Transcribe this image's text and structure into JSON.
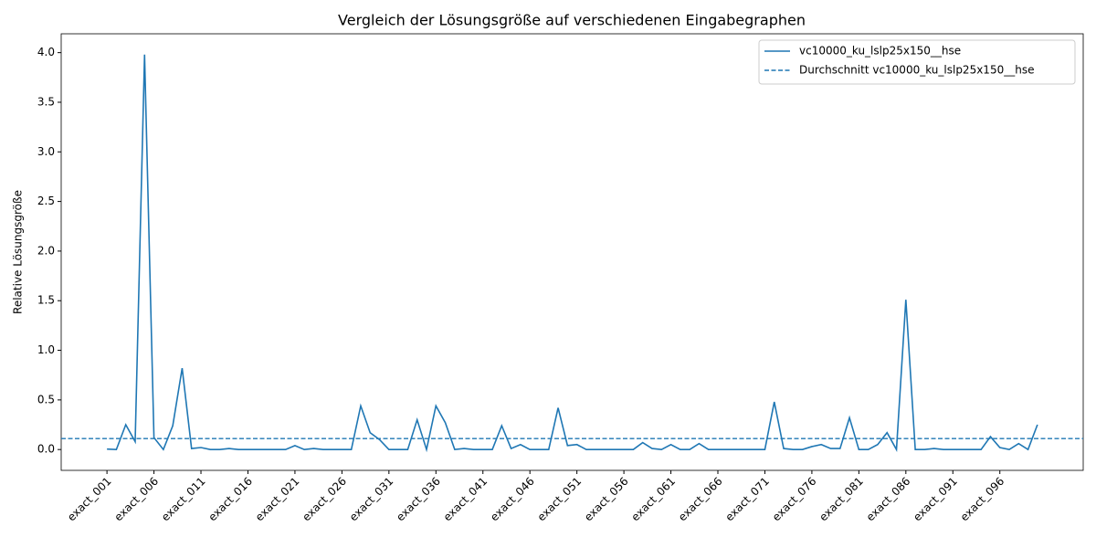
{
  "chart_data": {
    "type": "line",
    "title": "Vergleich der Lösungsgröße auf verschiedenen Eingabegraphen",
    "ylabel": "Relative Lösungsgröße",
    "categories": [
      "exact_001",
      null,
      null,
      null,
      null,
      "exact_006",
      null,
      null,
      null,
      null,
      "exact_011",
      null,
      null,
      null,
      null,
      "exact_016",
      null,
      null,
      null,
      null,
      "exact_021",
      null,
      null,
      null,
      null,
      "exact_026",
      null,
      null,
      null,
      null,
      "exact_031",
      null,
      null,
      null,
      null,
      "exact_036",
      null,
      null,
      null,
      null,
      "exact_041",
      null,
      null,
      null,
      null,
      "exact_046",
      null,
      null,
      null,
      null,
      "exact_051",
      null,
      null,
      null,
      null,
      "exact_056",
      null,
      null,
      null,
      null,
      "exact_061",
      null,
      null,
      null,
      null,
      "exact_066",
      null,
      null,
      null,
      null,
      "exact_071",
      null,
      null,
      null,
      null,
      "exact_076",
      null,
      null,
      null,
      null,
      "exact_081",
      null,
      null,
      null,
      null,
      "exact_086",
      null,
      null,
      null,
      null,
      "exact_091",
      null,
      null,
      null,
      null,
      "exact_096",
      null,
      null,
      null,
      null
    ],
    "series": [
      {
        "name": "vc10000_ku_lslp25x150__hse",
        "color": "#1f77b4",
        "values": [
          0.005,
          0.0,
          0.25,
          0.08,
          3.98,
          0.12,
          0.0,
          0.24,
          0.82,
          0.01,
          0.02,
          0.0,
          0.0,
          0.01,
          0.0,
          0.0,
          0.0,
          0.0,
          0.0,
          0.0,
          0.04,
          0.0,
          0.01,
          0.0,
          0.0,
          0.0,
          0.0,
          0.44,
          0.17,
          0.1,
          0.0,
          0.0,
          0.0,
          0.3,
          0.0,
          0.44,
          0.27,
          0.0,
          0.01,
          0.0,
          0.0,
          0.0,
          0.24,
          0.01,
          0.05,
          0.0,
          0.0,
          0.0,
          0.42,
          0.04,
          0.05,
          0.0,
          0.0,
          0.0,
          0.0,
          0.0,
          0.0,
          0.07,
          0.01,
          0.0,
          0.05,
          0.0,
          0.0,
          0.06,
          0.0,
          0.0,
          0.0,
          0.0,
          0.0,
          0.0,
          0.0,
          0.48,
          0.01,
          0.0,
          0.0,
          0.03,
          0.05,
          0.01,
          0.01,
          0.32,
          0.0,
          0.0,
          0.05,
          0.17,
          0.0,
          1.51,
          0.0,
          0.0,
          0.01,
          0.0,
          0.0,
          0.0,
          0.0,
          0.0,
          0.13,
          0.02,
          0.0,
          0.06,
          0.0,
          0.25
        ]
      },
      {
        "name": "Durchschnitt vc10000_ku_lslp25x150__hse",
        "color": "#1f77b4",
        "style": "dashed",
        "value": 0.11
      }
    ],
    "ylim": [
      -0.21,
      4.19
    ],
    "yticks": [
      {
        "value": 0,
        "label": "0.0"
      },
      {
        "value": 0.5,
        "label": "0.5"
      },
      {
        "value": 1,
        "label": "1.0"
      },
      {
        "value": 1.5,
        "label": "1.5"
      },
      {
        "value": 2,
        "label": "2.0"
      },
      {
        "value": 2.5,
        "label": "2.5"
      },
      {
        "value": 3,
        "label": "3.0"
      },
      {
        "value": 3.5,
        "label": "3.5"
      },
      {
        "value": 4,
        "label": "4.0"
      }
    ],
    "legend": "upper right",
    "grid": false
  }
}
